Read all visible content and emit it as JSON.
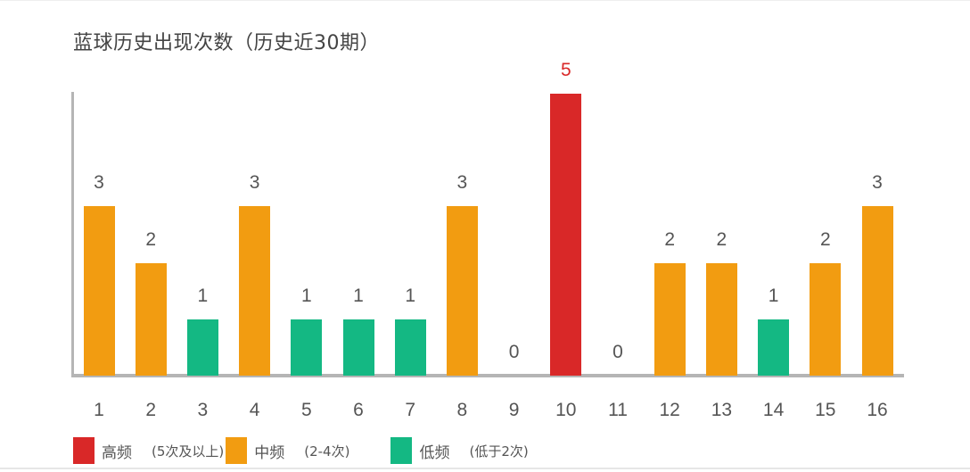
{
  "chart_data": {
    "type": "bar",
    "title": "蓝球历史出现次数（历史近30期）",
    "xlabel": "",
    "ylabel": "",
    "ylim": [
      0,
      5
    ],
    "grid": false,
    "legend_position": "bottom-left",
    "categories": [
      "1",
      "2",
      "3",
      "4",
      "5",
      "6",
      "7",
      "8",
      "9",
      "10",
      "11",
      "12",
      "13",
      "14",
      "15",
      "16"
    ],
    "values": [
      3,
      2,
      1,
      3,
      1,
      1,
      1,
      3,
      0,
      5,
      0,
      2,
      2,
      1,
      2,
      3
    ],
    "value_label_colors": {
      "high": "#d92828",
      "default": "#555555"
    },
    "legend": [
      {
        "key": "high",
        "label": "高频",
        "note": "(5次及以上)",
        "color": "#d92828"
      },
      {
        "key": "mid",
        "label": "中频",
        "note": "(2-4次)",
        "color": "#f29c11"
      },
      {
        "key": "low",
        "label": "低频",
        "note": "(低于2次)",
        "color": "#14b883"
      }
    ]
  }
}
